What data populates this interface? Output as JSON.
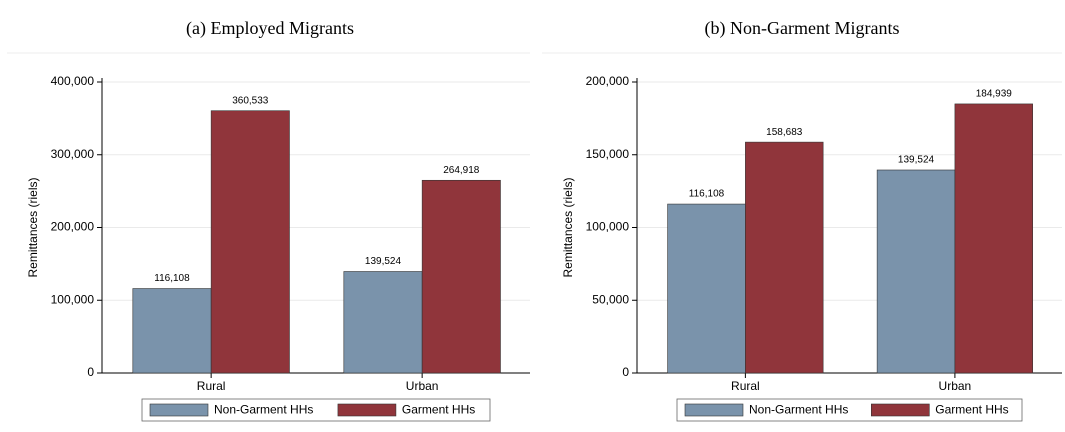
{
  "chart_data": [
    {
      "type": "bar",
      "title": "(a) Employed Migrants",
      "y_label": "Remittances (riels)",
      "categories": [
        "Rural",
        "Urban"
      ],
      "series": [
        {
          "name": "Non-Garment HHs",
          "color": "#7a93ab",
          "values": [
            116108,
            139524
          ],
          "value_labels": [
            "116,108",
            "139,524"
          ]
        },
        {
          "name": "Garment HHs",
          "color": "#90353b",
          "values": [
            360533,
            264918
          ],
          "value_labels": [
            "360,533",
            "264,918"
          ]
        }
      ],
      "ylim": [
        0,
        400000
      ],
      "yticks": [
        0,
        {
          "value": 100000,
          "label": "100,000"
        },
        {
          "value": 200000,
          "label": "200,000"
        },
        {
          "value": 300000,
          "label": "300,000"
        },
        {
          "value": 400000,
          "label": "400,000"
        }
      ],
      "grid": true,
      "legend": "bottom"
    },
    {
      "type": "bar",
      "title": "(b) Non-Garment Migrants",
      "y_label": "Remittances (riels)",
      "categories": [
        "Rural",
        "Urban"
      ],
      "series": [
        {
          "name": "Non-Garment HHs",
          "color": "#7a93ab",
          "values": [
            116108,
            139524
          ],
          "value_labels": [
            "116,108",
            "139,524"
          ]
        },
        {
          "name": "Garment HHs",
          "color": "#90353b",
          "values": [
            158683,
            184939
          ],
          "value_labels": [
            "158,683",
            "184,939"
          ]
        }
      ],
      "ylim": [
        0,
        200000
      ],
      "yticks": [
        0,
        {
          "value": 50000,
          "label": "50,000"
        },
        {
          "value": 100000,
          "label": "100,000"
        },
        {
          "value": 150000,
          "label": "150,000"
        },
        {
          "value": 200000,
          "label": "200,000"
        }
      ],
      "grid": true,
      "legend": "bottom"
    }
  ]
}
